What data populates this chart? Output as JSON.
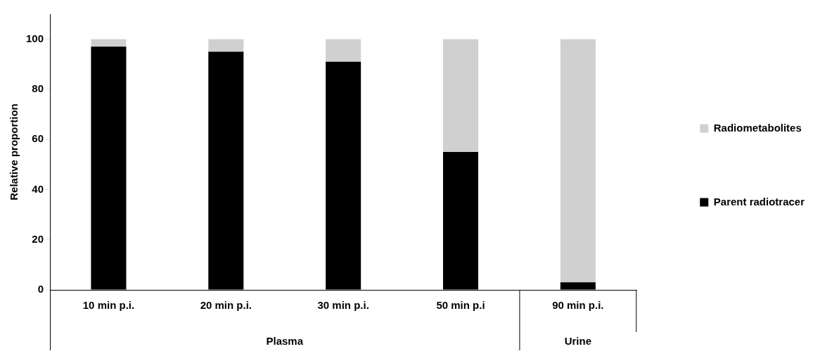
{
  "chart_data": {
    "type": "bar",
    "stacked": true,
    "ylabel": "Relative proportion",
    "categories": [
      "10 min p.i.",
      "20 min p.i.",
      "30 min p.i.",
      "50 min p.i",
      "90 min p.i."
    ],
    "series": [
      {
        "name": "Parent radiotracer",
        "color": "#000000",
        "values": [
          97,
          95,
          91,
          55,
          3
        ]
      },
      {
        "name": "Radiometabolites",
        "color": "#d0d0d0",
        "values": [
          3,
          5,
          9,
          45,
          97
        ]
      }
    ],
    "ylim": [
      0,
      110
    ],
    "yticks": [
      0,
      20,
      40,
      60,
      80,
      100
    ],
    "grid": false,
    "legend": "right",
    "annotations": [
      "Plasma",
      "Urine"
    ]
  }
}
